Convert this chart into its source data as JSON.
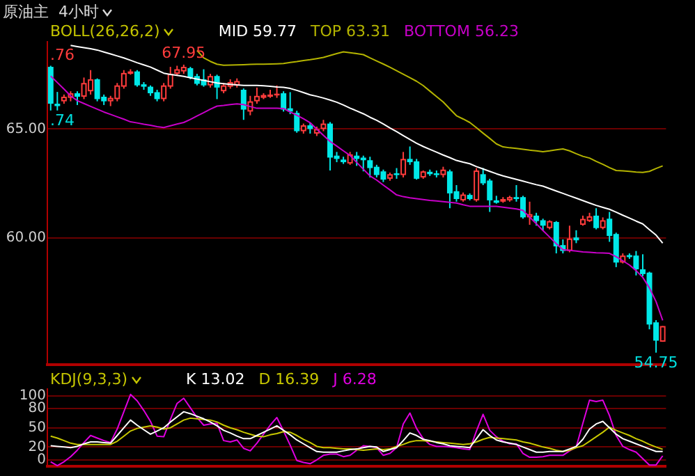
{
  "chart_data": [
    {
      "type": "candlestick",
      "title": "原油主  4小时",
      "legend_title": "BOLL(26,26,2)",
      "legend": "top left",
      "grid": "y",
      "tick_labels": "y",
      "ylim": [
        54.2,
        69.0
      ],
      "yticks": [
        {
          "value": 65,
          "label": "65.00"
        },
        {
          "value": 60,
          "label": "60.00"
        }
      ],
      "categories": [
        null,
        null,
        null,
        null,
        null,
        null,
        null,
        null,
        null,
        null,
        null,
        null,
        null,
        null,
        null,
        null,
        null,
        null,
        null,
        null,
        null,
        null,
        null,
        null,
        null,
        null,
        null,
        null,
        null,
        null,
        null,
        null,
        null,
        null,
        null,
        null,
        null,
        null,
        null,
        null,
        null,
        null,
        null,
        null,
        null,
        null,
        null,
        null,
        null,
        null,
        null,
        null,
        null,
        null,
        null,
        null,
        null,
        null,
        null,
        null,
        null,
        null,
        null,
        null,
        null,
        null,
        null,
        null,
        null,
        null,
        null,
        null,
        null,
        null,
        null,
        null,
        null,
        null,
        null,
        null,
        null,
        null,
        null,
        null,
        null,
        null,
        null,
        null,
        null,
        null,
        null,
        null,
        null
      ],
      "ohlc": [
        [
          67.85,
          67.9,
          65.85,
          66.16
        ],
        [
          66.16,
          66.7,
          65.85,
          66.05
        ],
        [
          66.27,
          66.58,
          66.16,
          66.48
        ],
        [
          66.43,
          66.73,
          66.27,
          66.64
        ],
        [
          66.64,
          66.73,
          66.1,
          66.48
        ],
        [
          66.48,
          67.36,
          66.37,
          67.11
        ],
        [
          66.73,
          67.7,
          66.58,
          67.28
        ],
        [
          67.28,
          67.32,
          66.27,
          66.37
        ],
        [
          66.48,
          66.58,
          66.1,
          66.27
        ],
        [
          66.27,
          66.52,
          66.05,
          66.43
        ],
        [
          66.37,
          67.11,
          66.27,
          67.0
        ],
        [
          66.94,
          67.7,
          66.85,
          67.57
        ],
        [
          67.53,
          67.74,
          67.49,
          67.64
        ],
        [
          67.64,
          67.7,
          66.94,
          67.0
        ],
        [
          67.05,
          67.15,
          66.8,
          66.94
        ],
        [
          66.94,
          67.0,
          66.52,
          66.64
        ],
        [
          66.69,
          66.8,
          66.27,
          66.37
        ],
        [
          66.37,
          67.11,
          66.27,
          67.0
        ],
        [
          66.94,
          67.85,
          66.85,
          67.53
        ],
        [
          67.53,
          67.9,
          67.43,
          67.74
        ],
        [
          67.64,
          67.95,
          67.53,
          67.85
        ],
        [
          67.79,
          67.85,
          67.28,
          67.36
        ],
        [
          67.43,
          67.53,
          67.0,
          67.07
        ],
        [
          67.28,
          67.74,
          66.94,
          67.0
        ],
        [
          67.0,
          67.53,
          66.9,
          67.43
        ],
        [
          67.43,
          67.49,
          66.37,
          66.9
        ],
        [
          66.73,
          67.11,
          66.64,
          67.0
        ],
        [
          66.94,
          67.28,
          66.85,
          67.15
        ],
        [
          67.0,
          67.32,
          66.9,
          67.2
        ],
        [
          66.8,
          66.86,
          65.42,
          65.89
        ],
        [
          65.8,
          66.52,
          65.63,
          66.27
        ],
        [
          66.27,
          66.9,
          66.16,
          66.52
        ],
        [
          66.43,
          66.64,
          66.37,
          66.56
        ],
        [
          66.48,
          66.8,
          66.43,
          66.58
        ],
        [
          66.54,
          67.0,
          66.43,
          66.62
        ],
        [
          66.64,
          66.73,
          65.8,
          65.89
        ],
        [
          65.95,
          66.69,
          65.68,
          65.8
        ],
        [
          65.74,
          65.84,
          64.83,
          64.9
        ],
        [
          64.9,
          65.25,
          64.79,
          65.17
        ],
        [
          65.17,
          65.3,
          64.79,
          65.0
        ],
        [
          64.79,
          65.11,
          64.68,
          65.0
        ],
        [
          65.0,
          65.42,
          64.9,
          65.25
        ],
        [
          65.25,
          65.32,
          63.1,
          63.69
        ],
        [
          63.78,
          63.95,
          63.48,
          63.63
        ],
        [
          63.6,
          63.73,
          63.4,
          63.48
        ],
        [
          63.42,
          63.95,
          63.36,
          63.84
        ],
        [
          63.78,
          63.95,
          63.31,
          63.63
        ],
        [
          63.69,
          63.78,
          63.06,
          63.57
        ],
        [
          63.57,
          63.73,
          62.78,
          63.21
        ],
        [
          63.27,
          63.36,
          62.78,
          62.89
        ],
        [
          63.06,
          63.14,
          62.57,
          62.68
        ],
        [
          62.72,
          63.0,
          62.63,
          62.93
        ],
        [
          62.97,
          63.21,
          62.72,
          62.89
        ],
        [
          62.89,
          63.95,
          62.78,
          63.63
        ],
        [
          63.63,
          64.2,
          63.36,
          63.48
        ],
        [
          63.52,
          63.63,
          62.68,
          62.72
        ],
        [
          62.78,
          63.1,
          62.72,
          63.06
        ],
        [
          63.04,
          63.14,
          62.85,
          62.93
        ],
        [
          62.97,
          63.1,
          62.78,
          62.89
        ],
        [
          62.89,
          63.27,
          62.78,
          63.14
        ],
        [
          63.06,
          63.14,
          61.37,
          62.05
        ],
        [
          62.15,
          62.43,
          61.67,
          61.79
        ],
        [
          61.73,
          62.09,
          61.67,
          62.0
        ],
        [
          61.98,
          62.05,
          61.73,
          61.79
        ],
        [
          61.73,
          63.21,
          61.67,
          63.1
        ],
        [
          62.93,
          63.21,
          62.43,
          62.51
        ],
        [
          62.64,
          62.72,
          61.2,
          61.73
        ],
        [
          61.73,
          61.94,
          61.58,
          61.62
        ],
        [
          61.67,
          61.88,
          61.62,
          61.79
        ],
        [
          61.73,
          61.94,
          61.67,
          61.88
        ],
        [
          61.88,
          62.43,
          61.67,
          61.79
        ],
        [
          61.88,
          61.94,
          60.89,
          60.95
        ],
        [
          60.95,
          61.67,
          60.61,
          61.1
        ],
        [
          61.03,
          61.16,
          60.57,
          60.78
        ],
        [
          60.82,
          60.89,
          60.36,
          60.57
        ],
        [
          60.46,
          60.82,
          60.4,
          60.78
        ],
        [
          60.74,
          60.78,
          59.3,
          59.62
        ],
        [
          59.68,
          59.94,
          59.3,
          59.41
        ],
        [
          59.41,
          60.57,
          59.35,
          59.98
        ],
        [
          60.03,
          60.36,
          59.77,
          59.9
        ],
        [
          60.61,
          61.03,
          60.57,
          60.88
        ],
        [
          60.78,
          61.16,
          60.74,
          61.0
        ],
        [
          61.03,
          61.37,
          60.4,
          60.46
        ],
        [
          60.46,
          60.95,
          60.4,
          60.82
        ],
        [
          60.89,
          61.2,
          59.83,
          60.1
        ],
        [
          60.19,
          60.25,
          58.67,
          58.88
        ],
        [
          58.88,
          59.3,
          58.84,
          59.2
        ],
        [
          59.22,
          59.3,
          59.05,
          59.13
        ],
        [
          59.2,
          59.41,
          58.29,
          58.57
        ],
        [
          58.57,
          59.26,
          58.25,
          58.35
        ],
        [
          58.42,
          58.46,
          55.82,
          56.04
        ],
        [
          56.14,
          56.24,
          54.75,
          55.3
        ],
        [
          55.25,
          55.97,
          55.25,
          55.97
        ]
      ],
      "colors": [
        "#00e8e8",
        "#00e8e8",
        "#ff3c3c",
        "#ff3c3c",
        "#00e8e8",
        "#ff3c3c",
        "#ff3c3c",
        "#00e8e8",
        "#00e8e8",
        "#ff3c3c",
        "#ff3c3c",
        "#ff3c3c",
        "#ff3c3c",
        "#00e8e8",
        "#00e8e8",
        "#00e8e8",
        "#00e8e8",
        "#ff3c3c",
        "#ff3c3c",
        "#ff3c3c",
        "#ff3c3c",
        "#00e8e8",
        "#00e8e8",
        "#00e8e8",
        "#ff3c3c",
        "#00e8e8",
        "#ff3c3c",
        "#ff3c3c",
        "#ff3c3c",
        "#00e8e8",
        "#ff3c3c",
        "#ff3c3c",
        "#ff3c3c",
        "#ff3c3c",
        "#ff3c3c",
        "#00e8e8",
        "#00e8e8",
        "#00e8e8",
        "#ff3c3c",
        "#00e8e8",
        "#ff3c3c",
        "#ff3c3c",
        "#00e8e8",
        "#00e8e8",
        "#00e8e8",
        "#ff3c3c",
        "#00e8e8",
        "#00e8e8",
        "#00e8e8",
        "#00e8e8",
        "#00e8e8",
        "#ff3c3c",
        "#00e8e8",
        "#ff3c3c",
        "#00e8e8",
        "#00e8e8",
        "#ff3c3c",
        "#00e8e8",
        "#00e8e8",
        "#ff3c3c",
        "#00e8e8",
        "#00e8e8",
        "#ff3c3c",
        "#00e8e8",
        "#ff3c3c",
        "#00e8e8",
        "#00e8e8",
        "#00e8e8",
        "#ff3c3c",
        "#ff3c3c",
        "#00e8e8",
        "#00e8e8",
        "#ff3c3c",
        "#00e8e8",
        "#00e8e8",
        "#ff3c3c",
        "#00e8e8",
        "#00e8e8",
        "#ff3c3c",
        "#00e8e8",
        "#ff3c3c",
        "#ff3c3c",
        "#00e8e8",
        "#ff3c3c",
        "#00e8e8",
        "#00e8e8",
        "#ff3c3c",
        "#00e8e8",
        "#00e8e8",
        "#00e8e8",
        "#00e8e8",
        "#00e8e8",
        "#ff3c3c"
      ],
      "series": [
        {
          "type": "line",
          "name": "MID 59.77",
          "color": "#ffffff",
          "values": [
            null,
            null,
            null,
            68.83,
            68.78,
            68.73,
            68.68,
            68.62,
            68.53,
            68.44,
            68.35,
            68.26,
            68.15,
            68.04,
            67.94,
            67.84,
            67.7,
            67.56,
            67.5,
            67.46,
            67.41,
            67.35,
            67.29,
            67.23,
            67.17,
            67.11,
            67.08,
            67.05,
            67.02,
            67.0,
            67.0,
            67.0,
            66.98,
            66.96,
            66.93,
            66.91,
            66.86,
            66.77,
            66.67,
            66.57,
            66.5,
            66.42,
            66.33,
            66.23,
            66.1,
            65.96,
            65.83,
            65.7,
            65.54,
            65.4,
            65.23,
            65.05,
            64.88,
            64.7,
            64.52,
            64.35,
            64.2,
            64.07,
            63.94,
            63.81,
            63.69,
            63.56,
            63.48,
            63.41,
            63.28,
            63.17,
            63.06,
            62.95,
            62.85,
            62.77,
            62.69,
            62.61,
            62.53,
            62.45,
            62.38,
            62.27,
            62.16,
            62.05,
            61.94,
            61.83,
            61.72,
            61.61,
            61.5,
            61.41,
            61.32,
            61.19,
            61.05,
            60.92,
            60.78,
            60.65,
            60.39,
            60.14,
            59.77
          ]
        },
        {
          "type": "line",
          "name": "TOP 63.31",
          "color": "#b4b400",
          "values": [
            null,
            null,
            null,
            null,
            null,
            null,
            null,
            null,
            null,
            null,
            null,
            null,
            null,
            null,
            null,
            null,
            null,
            null,
            null,
            null,
            null,
            null,
            68.6,
            68.26,
            68.1,
            67.97,
            67.92,
            67.93,
            67.94,
            67.95,
            67.96,
            67.97,
            67.97,
            67.98,
            67.99,
            68.0,
            68.05,
            68.09,
            68.14,
            68.18,
            68.23,
            68.28,
            68.37,
            68.46,
            68.54,
            68.5,
            68.46,
            68.41,
            68.26,
            68.12,
            67.98,
            67.83,
            67.67,
            67.51,
            67.35,
            67.19,
            66.99,
            66.74,
            66.49,
            66.24,
            65.92,
            65.61,
            65.46,
            65.3,
            65.06,
            64.81,
            64.57,
            64.32,
            64.18,
            64.14,
            64.11,
            64.07,
            64.03,
            64.0,
            63.96,
            64.0,
            64.05,
            64.09,
            64.0,
            63.87,
            63.75,
            63.67,
            63.52,
            63.38,
            63.23,
            63.1,
            63.08,
            63.06,
            63.03,
            63.01,
            63.06,
            63.19,
            63.31
          ]
        },
        {
          "type": "line",
          "name": "BOTTOM 56.23",
          "color": "#c800c8",
          "values": [
            67.43,
            67.13,
            66.83,
            66.52,
            66.3,
            66.17,
            66.04,
            65.91,
            65.78,
            65.67,
            65.56,
            65.45,
            65.33,
            65.28,
            65.22,
            65.17,
            65.11,
            65.07,
            65.15,
            65.23,
            65.3,
            65.44,
            65.6,
            65.75,
            65.91,
            66.05,
            66.08,
            66.12,
            66.15,
            66.12,
            66.03,
            65.95,
            65.95,
            65.95,
            65.95,
            65.94,
            65.78,
            65.63,
            65.47,
            65.29,
            65.0,
            64.71,
            64.43,
            64.22,
            64.0,
            63.79,
            63.47,
            63.16,
            62.85,
            62.66,
            62.43,
            62.21,
            61.98,
            61.9,
            61.85,
            61.81,
            61.77,
            61.73,
            61.7,
            61.67,
            61.64,
            61.61,
            61.53,
            61.46,
            61.46,
            61.46,
            61.46,
            61.46,
            61.42,
            61.38,
            61.34,
            61.27,
            60.96,
            60.66,
            60.35,
            60.05,
            59.74,
            59.47,
            59.44,
            59.41,
            59.37,
            59.35,
            59.33,
            59.32,
            59.3,
            59.15,
            58.96,
            58.77,
            58.51,
            58.2,
            57.72,
            57.09,
            56.23
          ]
        }
      ],
      "annotations": [
        ".76",
        ".74",
        {
          "text": "67.95",
          "y": 67.95
        },
        {
          "text": "54.75",
          "y": 54.75
        }
      ]
    },
    {
      "type": "line",
      "legend_title": "KDJ(9,3,3)",
      "legend": "top left",
      "grid": "y",
      "tick_labels": "y",
      "ylim": [
        -10,
        110
      ],
      "yticks": [
        100,
        80,
        50,
        20,
        0
      ],
      "categories": [
        null,
        null,
        null,
        null,
        null,
        null,
        null,
        null,
        null,
        null,
        null,
        null,
        null,
        null,
        null,
        null,
        null,
        null,
        null,
        null,
        null,
        null,
        null,
        null,
        null,
        null,
        null,
        null,
        null,
        null,
        null,
        null,
        null,
        null,
        null,
        null,
        null,
        null,
        null,
        null,
        null,
        null,
        null,
        null,
        null,
        null,
        null,
        null,
        null,
        null,
        null,
        null,
        null,
        null,
        null,
        null,
        null,
        null,
        null,
        null,
        null,
        null,
        null,
        null,
        null,
        null,
        null,
        null,
        null,
        null,
        null,
        null,
        null,
        null,
        null,
        null,
        null,
        null,
        null,
        null,
        null,
        null,
        null,
        null,
        null,
        null,
        null,
        null,
        null,
        null,
        null,
        null,
        null
      ],
      "series": [
        {
          "name": "K 13.02",
          "color": "#ffffff",
          "values": [
            22,
            21,
            20,
            19,
            21,
            25,
            28,
            28,
            27,
            26,
            38,
            50,
            62,
            54,
            47,
            40,
            45,
            50,
            59,
            67,
            75,
            72,
            68,
            64,
            59,
            53,
            46,
            42,
            37,
            33,
            33,
            38,
            43,
            48,
            53,
            46,
            39,
            31,
            25,
            19,
            13,
            12,
            12,
            12,
            14,
            16,
            17,
            19,
            21,
            20,
            13,
            16,
            19,
            30,
            42,
            38,
            32,
            30,
            27,
            25,
            22,
            21,
            20,
            19,
            33,
            47,
            38,
            31,
            28,
            26,
            24,
            20,
            16,
            12,
            12,
            13,
            13,
            13,
            17,
            21,
            32,
            48,
            56,
            60,
            50,
            40,
            33,
            29,
            25,
            21,
            17,
            13,
            13.02
          ]
        },
        {
          "name": "D 16.39",
          "color": "#c8c800",
          "values": [
            37,
            34,
            30,
            26,
            24,
            24,
            24,
            24,
            24,
            24,
            29,
            37,
            45,
            49,
            51,
            53,
            51,
            48,
            50,
            56,
            62,
            65,
            64,
            63,
            62,
            59,
            54,
            50,
            47,
            43,
            40,
            37,
            36,
            39,
            41,
            44,
            43,
            38,
            32,
            27,
            21,
            19,
            19,
            18,
            17,
            17,
            16,
            15,
            16,
            17,
            16,
            17,
            21,
            24,
            28,
            30,
            30,
            29,
            28,
            27,
            26,
            25,
            24,
            25,
            28,
            32,
            35,
            34,
            33,
            32,
            31,
            28,
            26,
            23,
            20,
            18,
            15,
            13,
            15,
            19,
            22,
            29,
            36,
            43,
            51,
            46,
            42,
            38,
            33,
            29,
            24,
            20,
            16.39
          ]
        },
        {
          "name": "J 6.28",
          "color": "#e000e0",
          "values": [
            -3,
            -9,
            -3,
            5,
            15,
            27,
            38,
            34,
            30,
            27,
            48,
            75,
            102,
            92,
            77,
            60,
            37,
            36,
            63,
            88,
            96,
            81,
            66,
            54,
            56,
            57,
            30,
            28,
            31,
            18,
            14,
            26,
            40,
            54,
            66,
            45,
            23,
            -1,
            -4,
            -6,
            0,
            7,
            9,
            9,
            5,
            7,
            15,
            22,
            21,
            19,
            7,
            10,
            19,
            56,
            73,
            49,
            33,
            24,
            21,
            21,
            20,
            19,
            17,
            16,
            45,
            71,
            46,
            36,
            29,
            25,
            25,
            10,
            4,
            4,
            5,
            7,
            7,
            7,
            14,
            20,
            57,
            93,
            91,
            93,
            69,
            38,
            21,
            16,
            12,
            2,
            -8,
            -8,
            6.28
          ]
        }
      ]
    }
  ]
}
